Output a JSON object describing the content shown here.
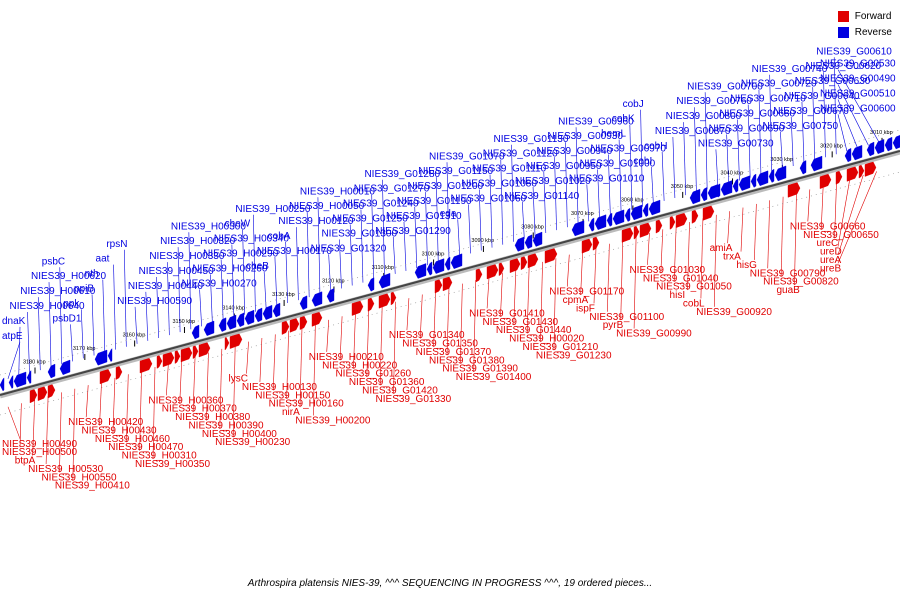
{
  "legend": {
    "forward_label": "Forward",
    "reverse_label": "Reverse",
    "forward_color": "#e00000",
    "reverse_color": "#0000e0"
  },
  "caption": "Arthrospira platensis NIES-39, ^^^ SEQUENCING IN PROGRESS ^^^, 19 ordered pieces...",
  "axis_ticks": [
    {
      "label": "3180 kbp",
      "kbp": 3180
    },
    {
      "label": "3170 kbp",
      "kbp": 3170
    },
    {
      "label": "3160 kbp",
      "kbp": 3160
    },
    {
      "label": "3150 kbp",
      "kbp": 3150
    },
    {
      "label": "3140 kbp",
      "kbp": 3140
    },
    {
      "label": "3130 kbp",
      "kbp": 3130
    },
    {
      "label": "3120 kbp",
      "kbp": 3120
    },
    {
      "label": "3110 kbp",
      "kbp": 3110
    },
    {
      "label": "3100 kbp",
      "kbp": 3100
    },
    {
      "label": "3090 kbp",
      "kbp": 3090
    },
    {
      "label": "3080 kbp",
      "kbp": 3080
    },
    {
      "label": "3070 kbp",
      "kbp": 3070
    },
    {
      "label": "3060 kbp",
      "kbp": 3060
    },
    {
      "label": "3050 kbp",
      "kbp": 3050
    },
    {
      "label": "3040 kbp",
      "kbp": 3040
    },
    {
      "label": "3030 kbp",
      "kbp": 3030
    },
    {
      "label": "3020 kbp",
      "kbp": 3020
    },
    {
      "label": "3010 kbp",
      "kbp": 3010
    }
  ],
  "reverse_genes": [
    "atpE",
    "dnaK",
    "NIES39_H00640",
    "NIES39_H00610",
    "NIES39_H00620",
    "psbC",
    "psbD1",
    "ppk",
    "ppiB",
    "nth",
    "aat",
    "rpsN",
    "NIES39_H00590",
    "NIES39_H00440",
    "NIES39_H00450",
    "NIES39_H00330",
    "NIES39_H00320",
    "NIES39_H00300",
    "NIES39_H00270",
    "NIES39_H00260",
    "NIES39_H00290",
    "NIES39_H00340",
    "cheW",
    "NIES39_H00250",
    "cheB",
    "NIES39_H00170",
    "cobA",
    "NIES39_H00120",
    "NIES39_H00050",
    "NIES39_H00010",
    "NIES39_G01320",
    "NIES39_G01300",
    "NIES39_G01250",
    "NIES39_G01240",
    "NIES39_G01270",
    "NIES39_G01280",
    "NIES39_G01290",
    "NIES39_G01310",
    "NIES39_G01190",
    "NIES39_G01200",
    "NIES39_G01150",
    "NIES39_G01070",
    "eda",
    "NIES39_G01060",
    "NIES39_G01080",
    "NIES39_G01110",
    "NIES39_G01120",
    "NIES39_G01130",
    "NIES39_G01140",
    "NIES39_G01020",
    "NIES39_G00950",
    "NIES39_G00940",
    "NIES39_G00930",
    "NIES39_G00960",
    "NIES39_G01010",
    "NIES39_G01000",
    "NIES39_G00970",
    "hemL",
    "cobK",
    "cobJ",
    "cobI",
    "cobH",
    "NIES39_G00870",
    "NIES39_G00800",
    "NIES39_G00760",
    "NIES39_G00700",
    "NIES39_G00730",
    "NIES39_G00690",
    "NIES39_G00680",
    "NIES39_G00710",
    "NIES39_G00720",
    "NIES39_G00740",
    "NIES39_G00750",
    "NIES39_G00670",
    "NIES39_G00640",
    "NIES39_G00630",
    "NIES39_G00620",
    "NIES39_G00610",
    "NIES39_G00600",
    "NIES39_G00510",
    "NIES39_G00490",
    "NIES39_G00530"
  ],
  "forward_genes": [
    "NIES39_H00490",
    "NIES39_H00500",
    "btpA",
    "NIES39_H00530",
    "NIES39_H00550",
    "NIES39_H00410",
    "NIES39_H00420",
    "NIES39_H00430",
    "NIES39_H00460",
    "NIES39_H00470",
    "NIES39_H00310",
    "NIES39_H00350",
    "NIES39_H00360",
    "NIES39_H00370",
    "NIES39_H00380",
    "NIES39_H00390",
    "NIES39_H00400",
    "NIES39_H00230",
    "lysC",
    "NIES39_H00130",
    "NIES39_H00150",
    "NIES39_H00160",
    "nirA",
    "NIES39_H00200",
    "NIES39_H00210",
    "NIES39_H00220",
    "NIES39_G01260",
    "NIES39_G01360",
    "NIES39_G01420",
    "NIES39_G01330",
    "NIES39_G01340",
    "NIES39_G01350",
    "NIES39_G01370",
    "NIES39_G01380",
    "NIES39_G01390",
    "NIES39_G01400",
    "NIES39_G01410",
    "NIES39_G01430",
    "NIES39_G01440",
    "NIES39_H00020",
    "NIES39_G01210",
    "NIES39_G01230",
    "NIES39_G01170",
    "cpmA",
    "ispF",
    "NIES39_G01100",
    "pyrB",
    "NIES39_G00990",
    "NIES39_G01030",
    "NIES39_G01040",
    "NIES39_G01050",
    "hisI",
    "cobL",
    "NIES39_G00920",
    "amiA",
    "trxA",
    "hisG",
    "NIES39_G00790",
    "NIES39_G00820",
    "guaB",
    "NIES39_G00660",
    "NIES39_G00650",
    "ureC",
    "ureD",
    "ureA",
    "ureB"
  ]
}
